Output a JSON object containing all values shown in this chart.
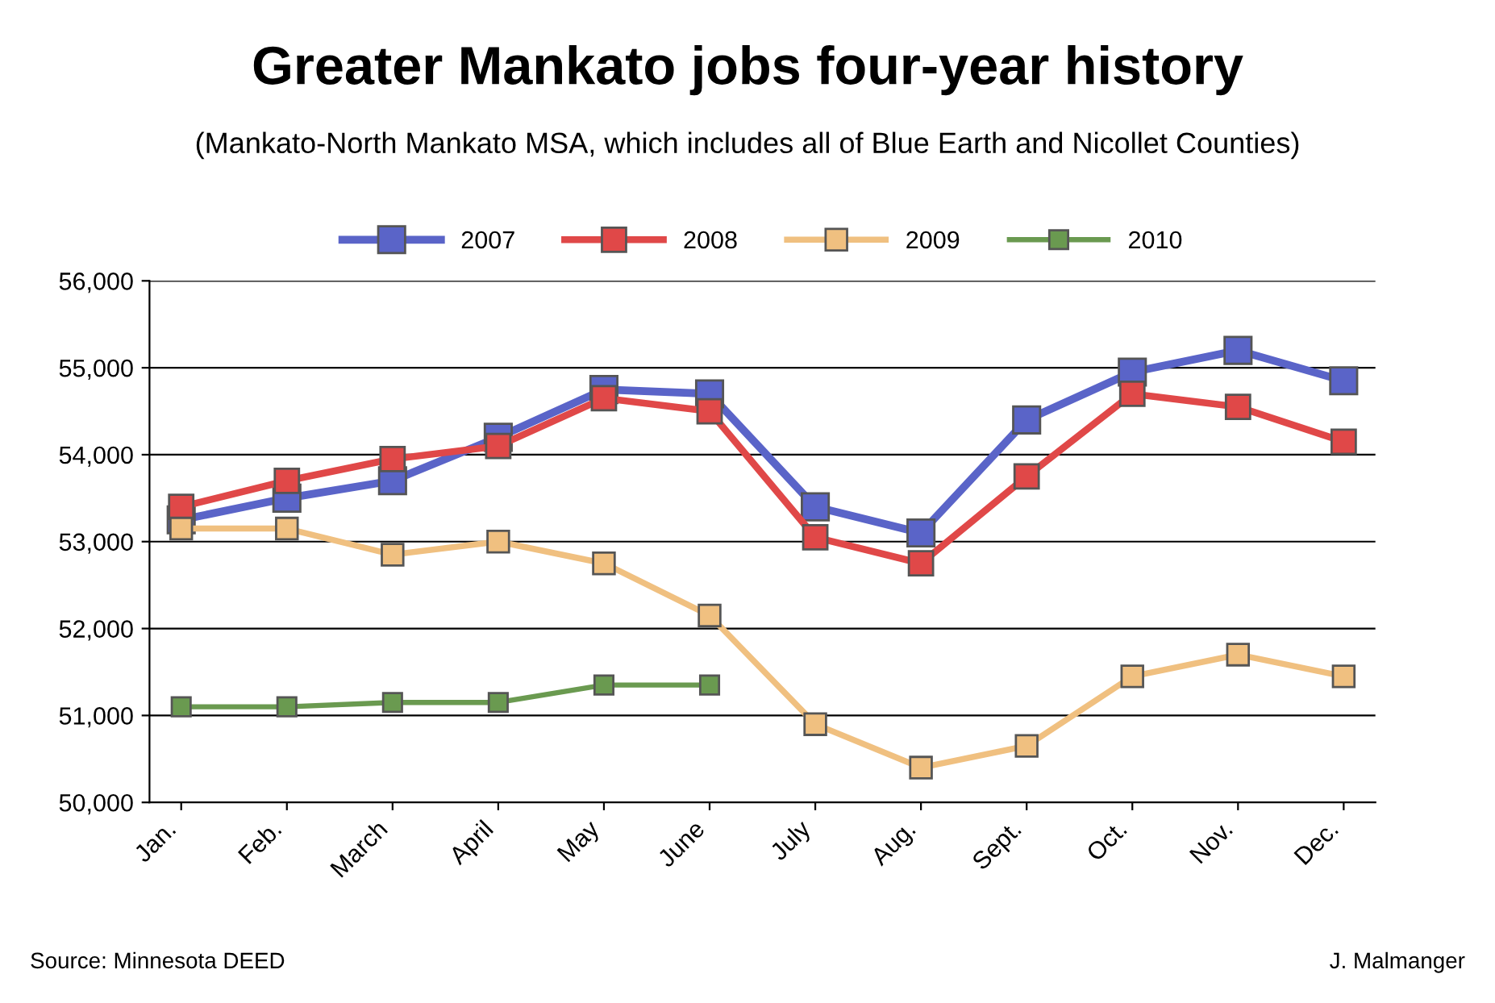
{
  "chart_data": {
    "type": "line",
    "title": "Greater Mankato jobs four-year history",
    "subtitle": "(Mankato-North Mankato MSA, which includes all of Blue Earth and Nicollet Counties)",
    "categories": [
      "Jan.",
      "Feb.",
      "March",
      "April",
      "May",
      "June",
      "July",
      "Aug.",
      "Sept.",
      "Oct.",
      "Nov.",
      "Dec."
    ],
    "series": [
      {
        "name": "2007",
        "color": "#5a64c8",
        "values": [
          53250,
          53500,
          53700,
          54200,
          54750,
          54700,
          53400,
          53100,
          54400,
          54950,
          55200,
          54850
        ]
      },
      {
        "name": "2008",
        "color": "#e04848",
        "values": [
          53400,
          53700,
          53950,
          54100,
          54650,
          54500,
          53050,
          52750,
          53750,
          54700,
          54550,
          54150
        ]
      },
      {
        "name": "2009",
        "color": "#f0c080",
        "values": [
          53150,
          53150,
          52850,
          53000,
          52750,
          52150,
          50900,
          50400,
          50650,
          51450,
          51700,
          51450
        ]
      },
      {
        "name": "2010",
        "color": "#6a9a50",
        "values": [
          51100,
          51100,
          51150,
          51150,
          51350,
          51350,
          null,
          null,
          null,
          null,
          null,
          null
        ]
      }
    ],
    "ylim": [
      50000,
      56000
    ],
    "yticks": [
      {
        "value": 50000,
        "label": "50,000"
      },
      {
        "value": 51000,
        "label": "51,000"
      },
      {
        "value": 52000,
        "label": "52,000"
      },
      {
        "value": 53000,
        "label": "53,000"
      },
      {
        "value": 54000,
        "label": "54,000"
      },
      {
        "value": 55000,
        "label": "55,000"
      },
      {
        "value": 56000,
        "label": "56,000"
      }
    ],
    "grid": "y",
    "legend": "top",
    "marker": "square",
    "line_style": "solid",
    "annotations": [
      "Source: Minnesota DEED",
      "J. Malmanger"
    ]
  }
}
